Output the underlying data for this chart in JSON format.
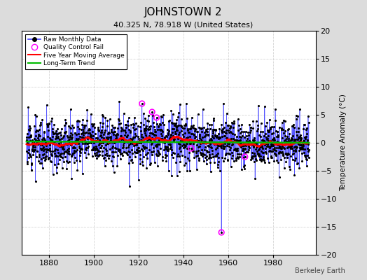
{
  "title": "JOHNSTOWN 2",
  "subtitle": "40.325 N, 78.918 W (United States)",
  "watermark": "Berkeley Earth",
  "ylabel": "Temperature Anomaly (°C)",
  "xlim": [
    1868,
    1999
  ],
  "ylim": [
    -20,
    20
  ],
  "yticks": [
    -20,
    -15,
    -10,
    -5,
    0,
    5,
    10,
    15,
    20
  ],
  "xticks": [
    1880,
    1900,
    1920,
    1940,
    1960,
    1980
  ],
  "bg_color": "#dcdcdc",
  "plot_bg_color": "#ffffff",
  "raw_line_color": "#4444ff",
  "raw_dot_color": "#000000",
  "qc_fail_color": "#ff00ff",
  "moving_avg_color": "#ff0000",
  "trend_color": "#00bb00",
  "seed": 12,
  "start_year": 1870,
  "end_year": 1996,
  "noise_std": 2.2,
  "qc_fails": [
    {
      "year": 1921.5,
      "value": 7.0
    },
    {
      "year": 1926.0,
      "value": 5.5
    },
    {
      "year": 1928.0,
      "value": 4.5
    },
    {
      "year": 1943.5,
      "value": -1.0
    },
    {
      "year": 1957.0,
      "value": -16.0
    },
    {
      "year": 1967.5,
      "value": -2.5
    }
  ]
}
